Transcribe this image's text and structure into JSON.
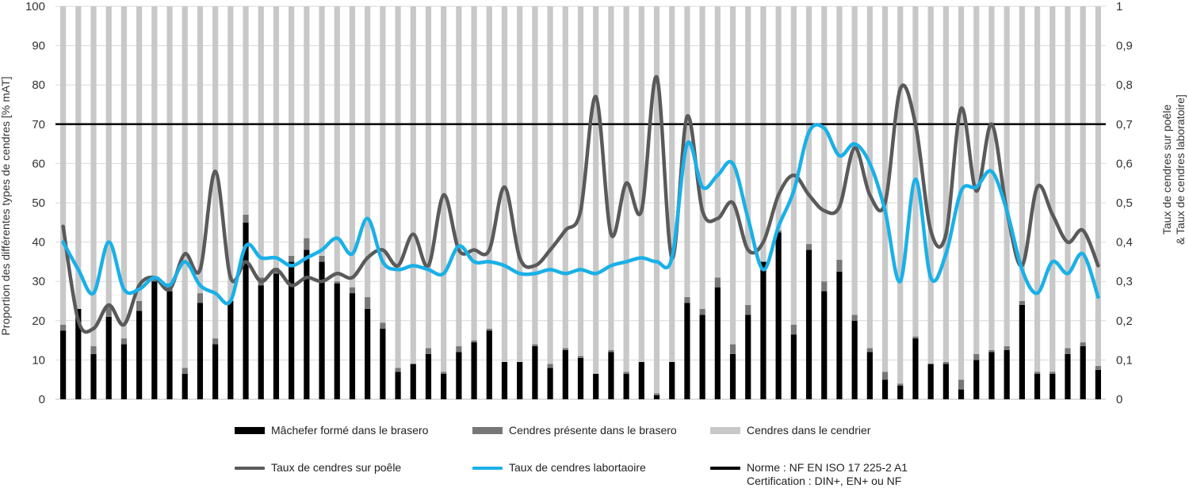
{
  "chart_data": {
    "type": "bar",
    "stacked": true,
    "ylabel": "Proportion des différentes types de cendres [% mAT]",
    "y2label_line1": "Taux de cendres sur poêle",
    "y2label_line2": "& Taux de cendres laboratoire]",
    "ylim": [
      0,
      100
    ],
    "y2lim": [
      0,
      1
    ],
    "yticks": [
      "0",
      "10",
      "20",
      "30",
      "40",
      "50",
      "60",
      "70",
      "80",
      "90",
      "100"
    ],
    "y2ticks": [
      "0",
      "0,1",
      "0,2",
      "0,3",
      "0,4",
      "0,5",
      "0,6",
      "0,7",
      "0,8",
      "0,9",
      "1"
    ],
    "grid": true,
    "legend_position": "bottom",
    "series": [
      {
        "name": "Mâchefer formé dans le brasero",
        "color": "#000000",
        "values": [
          17.5,
          23,
          11.5,
          21,
          14,
          22.5,
          30,
          27.5,
          6.5,
          24.5,
          14,
          25,
          45,
          29,
          32,
          35,
          38,
          35,
          29.5,
          27,
          23,
          18,
          7,
          9,
          11.5,
          6.5,
          12,
          14.5,
          17.5,
          9.5,
          9.5,
          13.5,
          8,
          12.5,
          10.5,
          6.5,
          12,
          6.5,
          9.5,
          1,
          9.5,
          24.5,
          21.5,
          28.5,
          11.5,
          21.5,
          35,
          42.5,
          16.5,
          38,
          27.5,
          32.5,
          20,
          12,
          5,
          3.5,
          15.5,
          9,
          9,
          2.5,
          10,
          12,
          12.5,
          24,
          6.5,
          6.5,
          11.5,
          13.5,
          7.5
        ]
      },
      {
        "name": "Cendres présente dans le brasero",
        "color": "#777777",
        "values": [
          1.5,
          0,
          2,
          2.5,
          1.5,
          2.5,
          1,
          2,
          1.5,
          2.5,
          1.5,
          0,
          2,
          2,
          1.5,
          1.5,
          3,
          1.5,
          0.5,
          1.5,
          3,
          1.5,
          1,
          0,
          1.5,
          0.5,
          1.5,
          0.5,
          0.5,
          0,
          0,
          0.5,
          1,
          0.5,
          0.5,
          0,
          0.5,
          0.5,
          0,
          0.5,
          0,
          1.5,
          1.5,
          2.5,
          2.5,
          2.5,
          0,
          0.5,
          2.5,
          1.5,
          2.5,
          3,
          1.5,
          1,
          2,
          0.5,
          0.5,
          0,
          0.5,
          2.5,
          1.5,
          0.5,
          1,
          1,
          0.5,
          0.5,
          1.5,
          1,
          1
        ]
      },
      {
        "name": "Cendres dans le cendrier",
        "color": "#c8c8c8",
        "values": [
          81,
          77,
          86.5,
          76.5,
          84.5,
          75,
          69,
          70.5,
          92,
          73,
          84.5,
          75,
          53,
          69,
          66.5,
          63.5,
          59,
          63.5,
          70,
          71.5,
          74,
          80.5,
          92,
          91,
          87,
          93,
          86.5,
          85,
          82,
          90.5,
          90.5,
          86,
          91,
          87,
          89,
          93.5,
          87.5,
          93,
          90.5,
          98.5,
          90.5,
          74,
          77,
          69,
          86,
          76,
          65,
          57,
          81,
          60.5,
          70,
          64.5,
          78.5,
          87,
          93,
          96,
          84,
          91,
          90.5,
          95,
          88.5,
          87.5,
          86.5,
          75,
          93,
          93,
          87,
          85.5,
          91.5
        ]
      },
      {
        "name": "Taux de cendres sur poêle",
        "color": "#5a5a5a",
        "axis": "secondary",
        "values": [
          0.44,
          0.2,
          0.18,
          0.24,
          0.19,
          0.29,
          0.31,
          0.28,
          0.37,
          0.33,
          0.58,
          0.31,
          0.35,
          0.3,
          0.33,
          0.29,
          0.31,
          0.3,
          0.32,
          0.31,
          0.36,
          0.38,
          0.34,
          0.42,
          0.34,
          0.52,
          0.38,
          0.38,
          0.38,
          0.54,
          0.36,
          0.34,
          0.38,
          0.43,
          0.48,
          0.77,
          0.42,
          0.55,
          0.48,
          0.82,
          0.36,
          0.72,
          0.48,
          0.46,
          0.5,
          0.38,
          0.4,
          0.52,
          0.57,
          0.52,
          0.48,
          0.49,
          0.64,
          0.52,
          0.5,
          0.79,
          0.7,
          0.43,
          0.42,
          0.74,
          0.53,
          0.7,
          0.48,
          0.34,
          0.54,
          0.47,
          0.4,
          0.43,
          0.34
        ]
      },
      {
        "name": "Taux de cendres labortaoire",
        "color": "#1ab0e8",
        "axis": "secondary",
        "values": [
          0.4,
          0.33,
          0.27,
          0.4,
          0.28,
          0.28,
          0.31,
          0.29,
          0.35,
          0.29,
          0.27,
          0.25,
          0.39,
          0.36,
          0.36,
          0.34,
          0.36,
          0.38,
          0.41,
          0.37,
          0.46,
          0.35,
          0.33,
          0.34,
          0.33,
          0.32,
          0.39,
          0.35,
          0.35,
          0.34,
          0.32,
          0.32,
          0.33,
          0.32,
          0.33,
          0.32,
          0.34,
          0.35,
          0.36,
          0.35,
          0.36,
          0.65,
          0.54,
          0.57,
          0.6,
          0.46,
          0.33,
          0.44,
          0.53,
          0.68,
          0.69,
          0.62,
          0.65,
          0.6,
          0.48,
          0.3,
          0.56,
          0.31,
          0.37,
          0.53,
          0.54,
          0.58,
          0.48,
          0.33,
          0.27,
          0.35,
          0.32,
          0.37,
          0.26
        ]
      },
      {
        "name": "Norme : NF EN ISO 17 225-2 A1",
        "name_line2": "Certification : DIN+, EN+ ou NF",
        "color": "#000000",
        "axis": "secondary",
        "values": [
          0.7
        ]
      }
    ]
  }
}
